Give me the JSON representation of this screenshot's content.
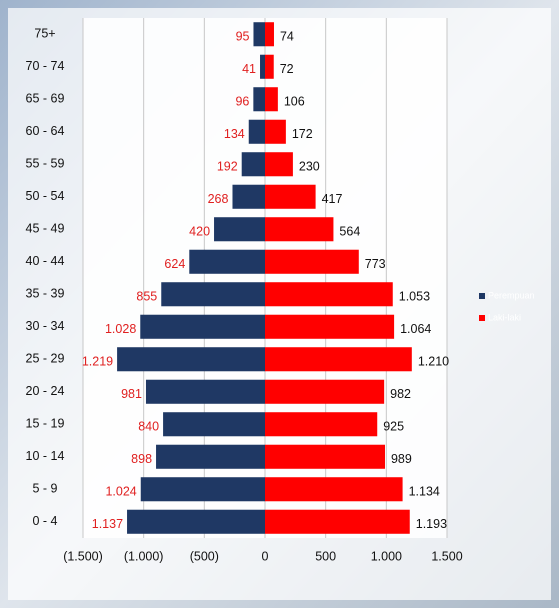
{
  "chart_data": {
    "type": "pyramid",
    "categories": [
      "75+",
      "70 - 74",
      "65 - 69",
      "60 - 64",
      "55 - 59",
      "50 - 54",
      "45 - 49",
      "40 - 44",
      "35 - 39",
      "30 - 34",
      "25 - 29",
      "20 - 24",
      "15 - 19",
      "10 - 14",
      "5 - 9",
      "0 - 4"
    ],
    "series": [
      {
        "name": "Perempuan",
        "color": "#1f3864",
        "label_color": "#e02020",
        "values": [
          -95,
          -41,
          -96,
          -134,
          -192,
          -268,
          -420,
          -624,
          -855,
          -1028,
          -1219,
          -981,
          -840,
          -898,
          -1024,
          -1137
        ],
        "value_labels": [
          "95",
          "41",
          "96",
          "134",
          "192",
          "268",
          "420",
          "624",
          "855",
          "1.028",
          "1.219",
          "981",
          "840",
          "898",
          "1.024",
          "1.137"
        ]
      },
      {
        "name": "Laki-laki",
        "color": "#ff0000",
        "label_color": "#111111",
        "values": [
          74,
          72,
          106,
          172,
          230,
          417,
          564,
          773,
          1053,
          1064,
          1210,
          982,
          925,
          989,
          1134,
          1193
        ],
        "value_labels": [
          "74",
          "72",
          "106",
          "172",
          "230",
          "417",
          "564",
          "773",
          "1.053",
          "1.064",
          "1.210",
          "982",
          "925",
          "989",
          "1.134",
          "1.193"
        ]
      }
    ],
    "xlim": [
      -1500,
      1500
    ],
    "xticks": [
      {
        "value": -1500,
        "label": "(1.500)"
      },
      {
        "value": -1000,
        "label": "(1.000)"
      },
      {
        "value": -500,
        "label": "(500)"
      },
      0,
      500,
      {
        "value": 1000,
        "label": "1.000"
      },
      {
        "value": 1500,
        "label": "1.500"
      }
    ],
    "grid": true,
    "legend": "right"
  }
}
